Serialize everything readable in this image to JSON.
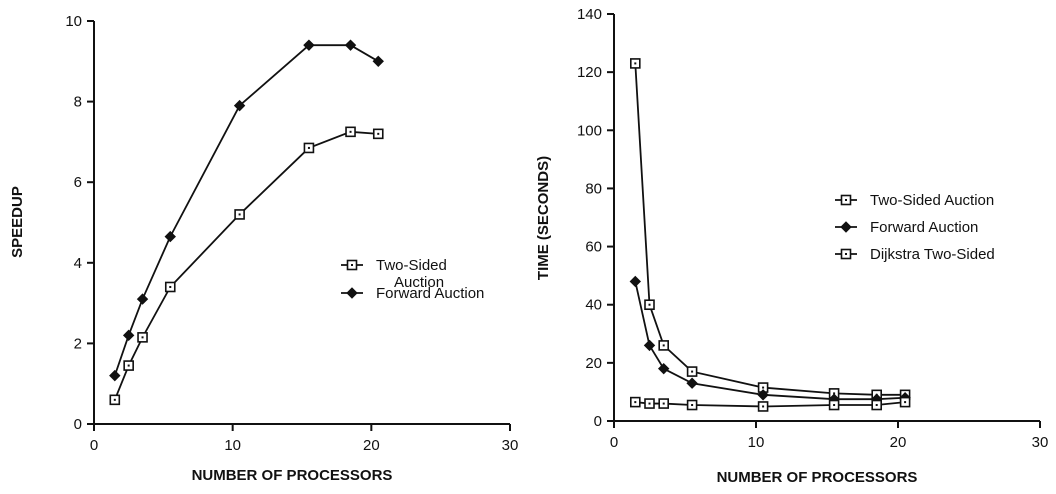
{
  "chart_data": [
    {
      "type": "line",
      "title": "",
      "xlabel": "NUMBER OF PROCESSORS",
      "ylabel": "SPEEDUP",
      "xlim": [
        0,
        30
      ],
      "ylim": [
        0,
        10
      ],
      "xticks": [
        0,
        10,
        20,
        30
      ],
      "yticks": [
        0,
        2,
        4,
        6,
        8,
        10
      ],
      "grid": false,
      "legend_position": "center-right",
      "series": [
        {
          "name": "Two-Sided Auction",
          "legend_lines": [
            "Two-Sided",
            "Auction"
          ],
          "marker": "open-square",
          "x": [
            1.5,
            2.5,
            3.5,
            5.5,
            10.5,
            15.5,
            18.5,
            20.5
          ],
          "y": [
            0.6,
            1.45,
            2.15,
            3.4,
            5.2,
            6.85,
            7.25,
            7.2
          ]
        },
        {
          "name": "Forward Auction",
          "legend_lines": [
            "Forward Auction"
          ],
          "marker": "filled-diamond",
          "x": [
            1.5,
            2.5,
            3.5,
            5.5,
            10.5,
            15.5,
            18.5,
            20.5
          ],
          "y": [
            1.2,
            2.2,
            3.1,
            4.65,
            7.9,
            9.4,
            9.4,
            9.0
          ]
        }
      ]
    },
    {
      "type": "line",
      "title": "",
      "xlabel": "NUMBER OF PROCESSORS",
      "ylabel": "TIME (SECONDS)",
      "xlim": [
        0,
        30
      ],
      "ylim": [
        0,
        140
      ],
      "xticks": [
        0,
        10,
        20,
        30
      ],
      "yticks": [
        0,
        20,
        40,
        60,
        80,
        100,
        120,
        140
      ],
      "grid": false,
      "legend_position": "center-right",
      "series": [
        {
          "name": "Two-Sided Auction",
          "legend_lines": [
            "Two-Sided Auction"
          ],
          "marker": "open-square",
          "x": [
            1.5,
            2.5,
            3.5,
            5.5,
            10.5,
            15.5,
            18.5,
            20.5
          ],
          "y": [
            123,
            40,
            26,
            17,
            11.5,
            9.5,
            9,
            9
          ]
        },
        {
          "name": "Forward Auction",
          "legend_lines": [
            "Forward Auction"
          ],
          "marker": "filled-diamond",
          "x": [
            1.5,
            2.5,
            3.5,
            5.5,
            10.5,
            15.5,
            18.5,
            20.5
          ],
          "y": [
            48,
            26,
            18,
            13,
            9,
            7.5,
            7.5,
            8
          ]
        },
        {
          "name": "Dijkstra Two-Sided",
          "legend_lines": [
            "Dijkstra Two-Sided"
          ],
          "marker": "open-square",
          "x": [
            1.5,
            2.5,
            3.5,
            5.5,
            10.5,
            15.5,
            18.5,
            20.5
          ],
          "y": [
            6.5,
            6,
            6,
            5.5,
            5,
            5.5,
            5.5,
            6.5
          ]
        }
      ]
    }
  ]
}
